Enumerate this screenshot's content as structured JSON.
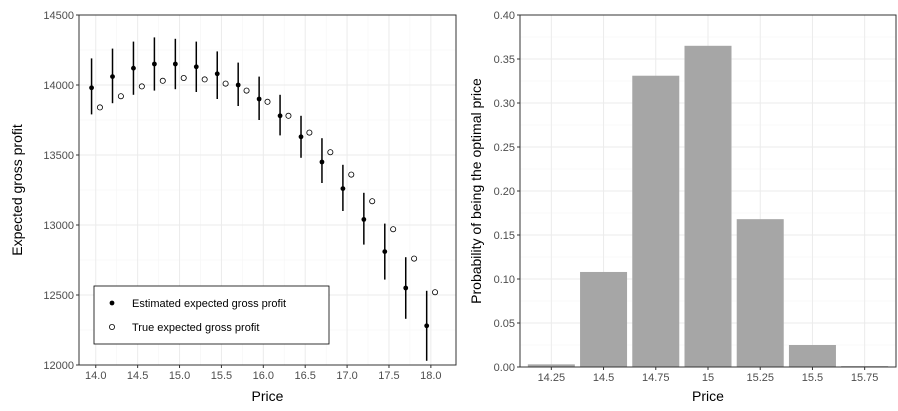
{
  "chart_data": [
    {
      "type": "scatter",
      "xlabel": "Price",
      "ylabel": "Expected gross profit",
      "xlim": [
        13.8,
        18.3
      ],
      "ylim": [
        12000,
        14500
      ],
      "x_ticks": [
        14.0,
        14.5,
        15.0,
        15.5,
        16.0,
        16.5,
        17.0,
        17.5,
        18.0
      ],
      "x_tick_labels": [
        "14.0",
        "14.5",
        "15.0",
        "15.5",
        "16.0",
        "16.5",
        "17.0",
        "17.5",
        "18.0"
      ],
      "y_ticks": [
        12000,
        12500,
        13000,
        13500,
        14000,
        14500
      ],
      "y_tick_labels": [
        "12000",
        "12500",
        "13000",
        "13500",
        "14000",
        "14500"
      ],
      "grid": true,
      "legend_position": "bottom-left",
      "series": [
        {
          "name": "Estimated expected gross profit",
          "marker": "filled-circle",
          "x": [
            13.95,
            14.2,
            14.45,
            14.7,
            14.95,
            15.2,
            15.45,
            15.7,
            15.95,
            16.2,
            16.45,
            16.7,
            16.95,
            17.2,
            17.45,
            17.7,
            17.95
          ],
          "y": [
            13980,
            14060,
            14120,
            14150,
            14150,
            14130,
            14080,
            14000,
            13900,
            13780,
            13630,
            13450,
            13260,
            13040,
            12810,
            12550,
            12280
          ],
          "lower": [
            13790,
            13870,
            13930,
            13960,
            13970,
            13950,
            13900,
            13850,
            13750,
            13640,
            13480,
            13300,
            13100,
            12860,
            12610,
            12330,
            12030
          ],
          "upper": [
            14190,
            14260,
            14310,
            14340,
            14330,
            14310,
            14240,
            14160,
            14060,
            13930,
            13780,
            13620,
            13430,
            13230,
            13010,
            12770,
            12530
          ]
        },
        {
          "name": "True expected gross profit",
          "marker": "open-circle",
          "x": [
            14.05,
            14.3,
            14.55,
            14.8,
            15.05,
            15.3,
            15.55,
            15.8,
            16.05,
            16.3,
            16.55,
            16.8,
            17.05,
            17.3,
            17.55,
            17.8,
            18.05
          ],
          "y": [
            13840,
            13920,
            13990,
            14030,
            14050,
            14040,
            14010,
            13960,
            13880,
            13780,
            13660,
            13520,
            13360,
            13170,
            12970,
            12760,
            12520
          ]
        }
      ]
    },
    {
      "type": "bar",
      "xlabel": "Price",
      "ylabel": "Probability of being the optimal price",
      "categories": [
        "14.25",
        "14.5",
        "14.75",
        "15",
        "15.25",
        "15.5",
        "15.75"
      ],
      "values": [
        0.003,
        0.108,
        0.331,
        0.365,
        0.168,
        0.025,
        0.001
      ],
      "ylim": [
        0,
        0.4
      ],
      "y_ticks": [
        0,
        0.05,
        0.1,
        0.15,
        0.2,
        0.25,
        0.3,
        0.35,
        0.4
      ],
      "y_tick_labels": [
        "0.00",
        "0.05",
        "0.10",
        "0.15",
        "0.20",
        "0.25",
        "0.30",
        "0.35",
        "0.40"
      ],
      "grid": true,
      "bar_color": "#a6a6a6"
    }
  ],
  "colors": {
    "panel_border": "#333333",
    "grid_major": "#ebebeb",
    "grid_minor": "#f5f5f5",
    "estimated_point": "#000000",
    "true_point_fill": "#ffffff",
    "bar": "#a6a6a6"
  }
}
